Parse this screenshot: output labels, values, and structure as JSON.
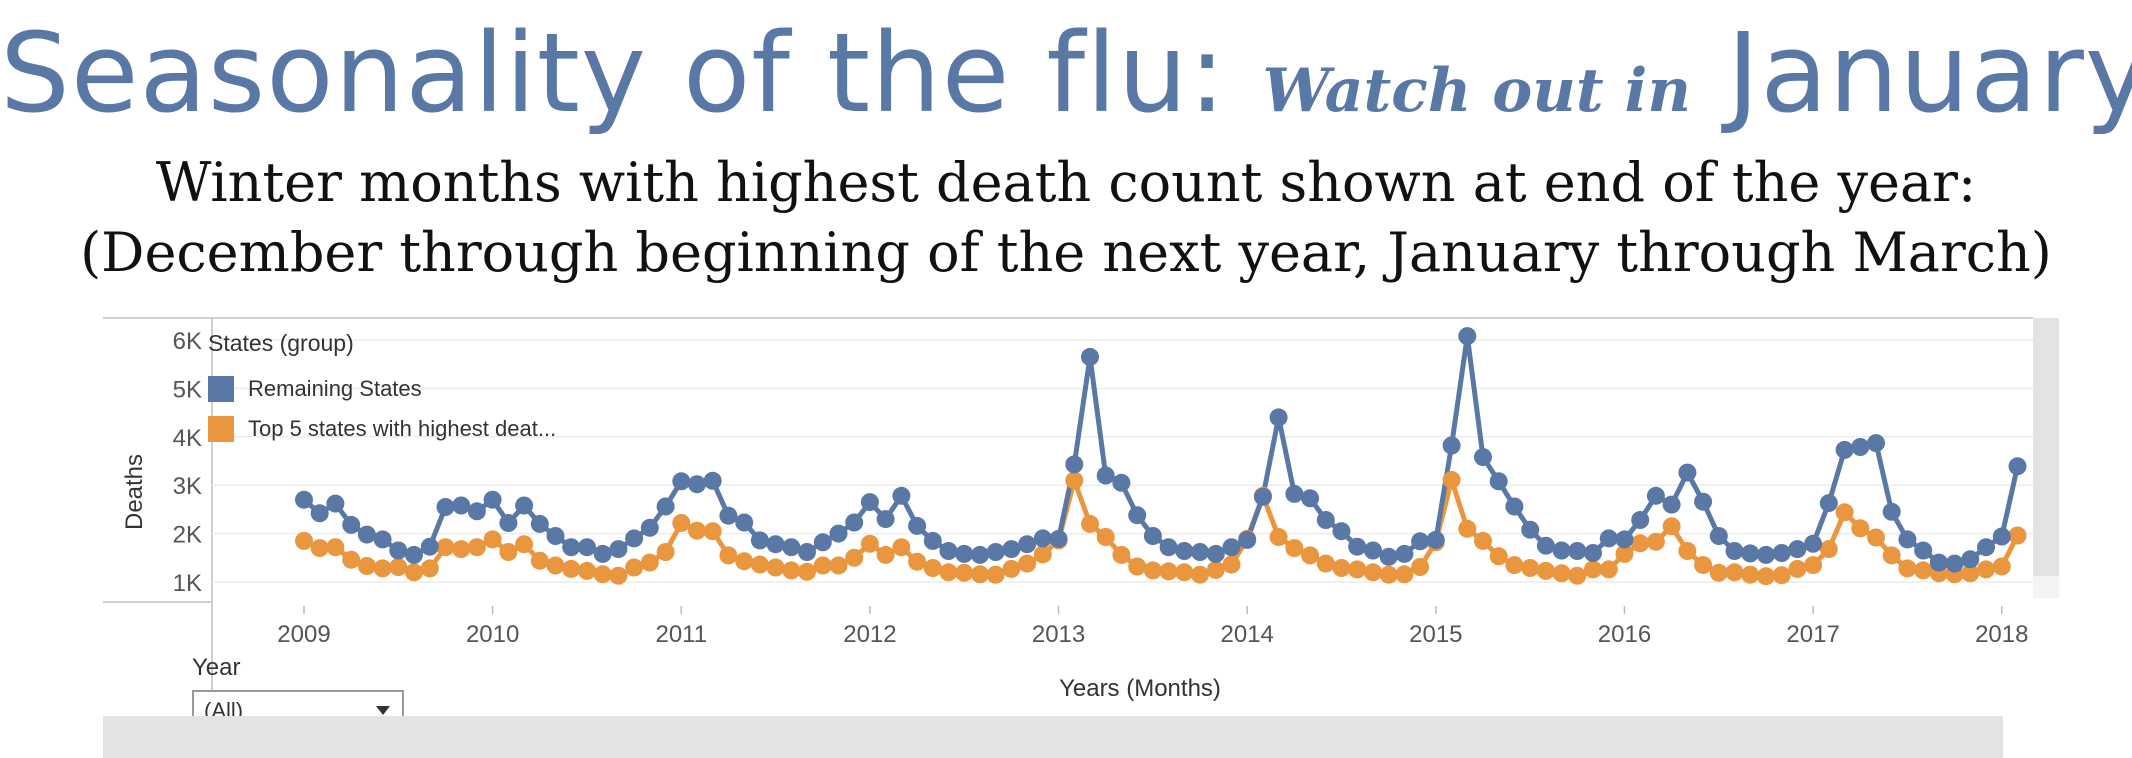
{
  "title": {
    "main_before": "Seasonality of the flu: ",
    "accent": "Watch out in",
    "main_after": " January!"
  },
  "subtitle": {
    "line1": "Winter months with highest death count shown at end of the year:",
    "line2": "(December through beginning of the next year, January through March)"
  },
  "filter": {
    "label": "Year",
    "value": "(All)"
  },
  "colors": {
    "remaining": "#5a78a6",
    "top5": "#e9963f",
    "axis_text": "#555555",
    "grid": "#ececec",
    "title": "#5a78a6"
  },
  "chart_data": {
    "type": "line",
    "xlabel": "Years (Months)",
    "ylabel": "Deaths",
    "ylim": [
      700,
      6200
    ],
    "y_ticks": [
      1000,
      2000,
      3000,
      4000,
      5000,
      6000
    ],
    "y_tick_labels": [
      "1K",
      "2K",
      "3K",
      "4K",
      "5K",
      "6K"
    ],
    "x_tick_labels": [
      "2009",
      "2010",
      "2011",
      "2012",
      "2013",
      "2014",
      "2015",
      "2016",
      "2017",
      "2018"
    ],
    "x_start": "2009-01",
    "x_end": "2017-12",
    "legend": {
      "title": "States (group)",
      "placement": "top-left"
    },
    "series": [
      {
        "name": "Remaining States",
        "values": [
          2700,
          2420,
          2620,
          2180,
          1980,
          1880,
          1650,
          1560,
          1730,
          2550,
          2580,
          2460,
          2700,
          2220,
          2580,
          2200,
          1950,
          1720,
          1720,
          1580,
          1680,
          1900,
          2120,
          2560,
          3080,
          3020,
          3090,
          2370,
          2230,
          1860,
          1780,
          1720,
          1620,
          1820,
          2000,
          2230,
          2650,
          2300,
          2780,
          2160,
          1850,
          1640,
          1580,
          1560,
          1620,
          1680,
          1780,
          1900,
          1890,
          3430,
          5650,
          3200,
          3050,
          2380,
          1950,
          1720,
          1640,
          1620,
          1580,
          1720,
          1870,
          2760,
          4400,
          2820,
          2730,
          2280,
          2050,
          1730,
          1650,
          1520,
          1580,
          1840,
          1870,
          3820,
          6080,
          3580,
          3080,
          2560,
          2080,
          1750,
          1650,
          1640,
          1600,
          1900,
          1880,
          2280,
          2780,
          2600,
          3260,
          2660,
          1950,
          1640,
          1590,
          1560,
          1600,
          1680,
          1790,
          2630,
          3730,
          3790,
          3870,
          2450,
          1880,
          1650,
          1400,
          1380,
          1470,
          1720,
          1940,
          3390
        ]
      },
      {
        "name": "Top 5 states with highest deat...",
        "values": [
          1850,
          1700,
          1720,
          1460,
          1330,
          1280,
          1310,
          1200,
          1280,
          1720,
          1680,
          1720,
          1880,
          1620,
          1780,
          1440,
          1340,
          1270,
          1230,
          1160,
          1130,
          1300,
          1400,
          1620,
          2220,
          2060,
          2050,
          1550,
          1430,
          1360,
          1300,
          1240,
          1210,
          1340,
          1340,
          1500,
          1790,
          1560,
          1720,
          1420,
          1290,
          1200,
          1190,
          1160,
          1150,
          1270,
          1380,
          1570,
          1860,
          3100,
          2200,
          1930,
          1560,
          1320,
          1240,
          1220,
          1200,
          1150,
          1250,
          1360,
          1890,
          2780,
          1930,
          1700,
          1550,
          1380,
          1290,
          1260,
          1200,
          1150,
          1160,
          1310,
          1820,
          3110,
          2100,
          1850,
          1530,
          1350,
          1290,
          1230,
          1180,
          1130,
          1260,
          1260,
          1580,
          1800,
          1830,
          2150,
          1640,
          1350,
          1190,
          1200,
          1150,
          1120,
          1140,
          1270,
          1350,
          1680,
          2440,
          2110,
          1920,
          1550,
          1280,
          1240,
          1180,
          1160,
          1180,
          1260,
          1320,
          1960
        ]
      }
    ]
  }
}
